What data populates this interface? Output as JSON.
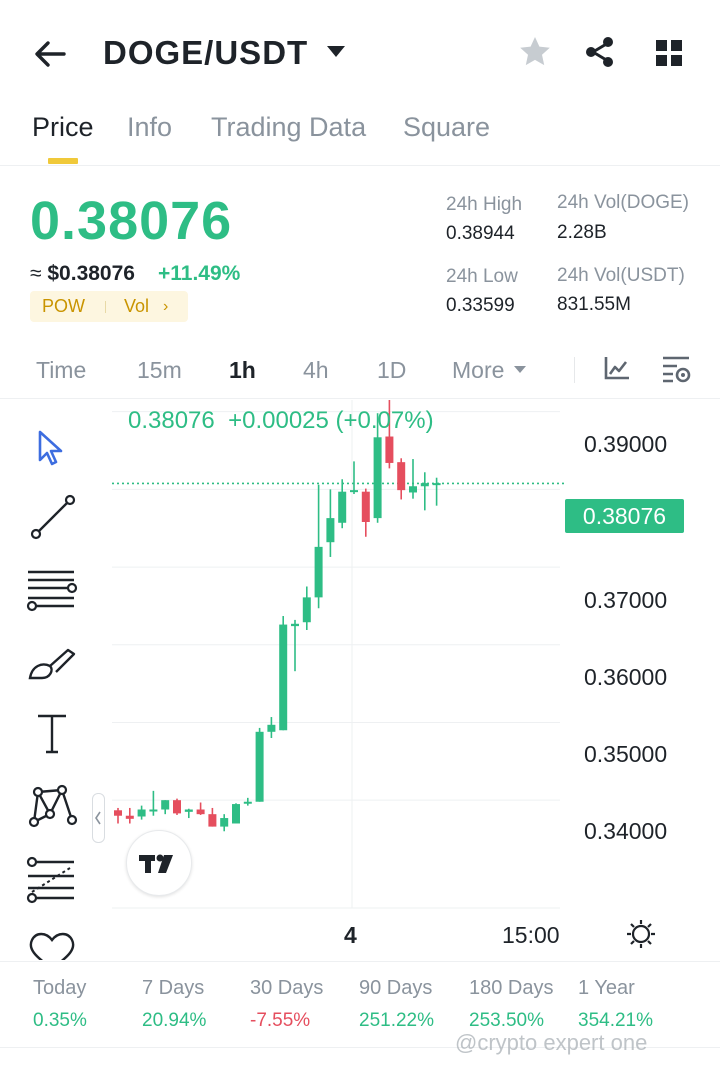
{
  "header": {
    "pair": "DOGE/USDT"
  },
  "tabs": [
    "Price",
    "Info",
    "Trading Data",
    "Square"
  ],
  "price": {
    "last": "0.38076",
    "fiat_prefix": "≈ ",
    "fiat": "$0.38076",
    "change": "+11.49%",
    "tag_pow": "POW",
    "tag_vol": "Vol",
    "tag_chevron": "›"
  },
  "stats": {
    "high_label": "24h High",
    "high": "0.38944",
    "low_label": "24h Low",
    "low": "0.33599",
    "vol_base_label": "24h Vol(DOGE)",
    "vol_base": "2.28B",
    "vol_quote_label": "24h Vol(USDT)",
    "vol_quote": "831.55M"
  },
  "intervals": [
    "Time",
    "15m",
    "1h",
    "4h",
    "1D",
    "More"
  ],
  "active_interval": "1h",
  "chart": {
    "legend": "0.38076  +0.00025 (+0.07%)",
    "current_price": "0.38076",
    "y_ticks": [
      "0.39000",
      "0.37000",
      "0.36000",
      "0.35000",
      "0.34000"
    ],
    "x_ticks": [
      "4",
      "15:00"
    ]
  },
  "colors": {
    "up": "#2ebd85",
    "down": "#e54e5e",
    "accent": "#f0c93a"
  },
  "performance": [
    {
      "label": "Today",
      "value": "0.35%"
    },
    {
      "label": "7 Days",
      "value": "20.94%"
    },
    {
      "label": "30 Days",
      "value": "-7.55%"
    },
    {
      "label": "90 Days",
      "value": "251.22%"
    },
    {
      "label": "180 Days",
      "value": "253.50%"
    },
    {
      "label": "1 Year",
      "value": "354.21%"
    }
  ],
  "watermark": "@crypto expert one",
  "chart_data": {
    "type": "candlestick",
    "y_range": [
      0.3305,
      0.3915
    ],
    "reference_price": 0.38076,
    "candles": [
      {
        "o": 0.3387,
        "h": 0.339,
        "l": 0.337,
        "c": 0.338
      },
      {
        "o": 0.338,
        "h": 0.339,
        "l": 0.337,
        "c": 0.3376
      },
      {
        "o": 0.3379,
        "h": 0.3393,
        "l": 0.3375,
        "c": 0.3388
      },
      {
        "o": 0.3386,
        "h": 0.3412,
        "l": 0.338,
        "c": 0.3388
      },
      {
        "o": 0.3388,
        "h": 0.34,
        "l": 0.3382,
        "c": 0.34
      },
      {
        "o": 0.34,
        "h": 0.3402,
        "l": 0.3381,
        "c": 0.3383
      },
      {
        "o": 0.3385,
        "h": 0.3389,
        "l": 0.3377,
        "c": 0.3388
      },
      {
        "o": 0.3388,
        "h": 0.3397,
        "l": 0.3381,
        "c": 0.3382
      },
      {
        "o": 0.3382,
        "h": 0.339,
        "l": 0.3366,
        "c": 0.3366
      },
      {
        "o": 0.3366,
        "h": 0.3382,
        "l": 0.336,
        "c": 0.3377
      },
      {
        "o": 0.337,
        "h": 0.3396,
        "l": 0.337,
        "c": 0.3395
      },
      {
        "o": 0.3396,
        "h": 0.3403,
        "l": 0.3393,
        "c": 0.3398
      },
      {
        "o": 0.3398,
        "h": 0.3493,
        "l": 0.3398,
        "c": 0.3488
      },
      {
        "o": 0.3488,
        "h": 0.3507,
        "l": 0.348,
        "c": 0.3497
      },
      {
        "o": 0.349,
        "h": 0.3637,
        "l": 0.349,
        "c": 0.3626
      },
      {
        "o": 0.3624,
        "h": 0.3632,
        "l": 0.3566,
        "c": 0.3627
      },
      {
        "o": 0.3629,
        "h": 0.3675,
        "l": 0.3619,
        "c": 0.3661
      },
      {
        "o": 0.3661,
        "h": 0.3806,
        "l": 0.3647,
        "c": 0.3726
      },
      {
        "o": 0.3732,
        "h": 0.38,
        "l": 0.3713,
        "c": 0.3763
      },
      {
        "o": 0.3757,
        "h": 0.3813,
        "l": 0.375,
        "c": 0.3797
      },
      {
        "o": 0.3797,
        "h": 0.3836,
        "l": 0.3794,
        "c": 0.3799
      },
      {
        "o": 0.3797,
        "h": 0.3801,
        "l": 0.3739,
        "c": 0.3758
      },
      {
        "o": 0.3763,
        "h": 0.3898,
        "l": 0.3757,
        "c": 0.3867
      },
      {
        "o": 0.3868,
        "h": 0.392,
        "l": 0.3827,
        "c": 0.3834
      },
      {
        "o": 0.3835,
        "h": 0.384,
        "l": 0.3787,
        "c": 0.3799
      },
      {
        "o": 0.3796,
        "h": 0.3839,
        "l": 0.3788,
        "c": 0.3804
      },
      {
        "o": 0.3804,
        "h": 0.3822,
        "l": 0.3773,
        "c": 0.3808
      },
      {
        "o": 0.3807,
        "h": 0.3815,
        "l": 0.3779,
        "c": 0.3808
      }
    ]
  }
}
